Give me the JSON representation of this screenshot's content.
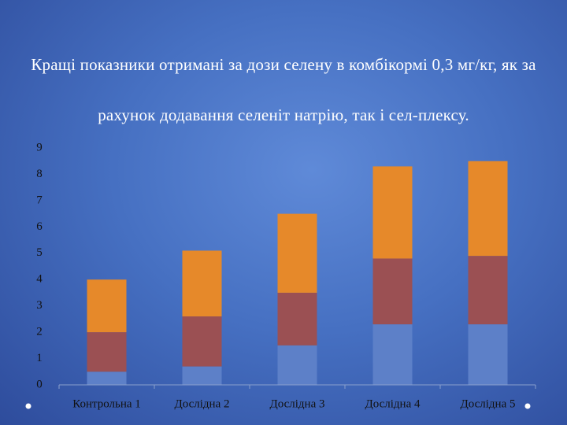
{
  "chart_data": {
    "type": "stacked_bar",
    "title": "Кращі показники отримані за дози селену в комбікормі 0,3 мг/кг, як за рахунок додавання селеніт натрію, так і сел-плексу.",
    "categories": [
      "Контрольна 1",
      "Дослідна 2",
      "Дослідна 3",
      "Дослідна 4",
      "Дослідна 5"
    ],
    "series": [
      {
        "color": "#5d80c8",
        "values": [
          0.5,
          0.7,
          1.5,
          2.3,
          2.3
        ]
      },
      {
        "color": "#9b5053",
        "values": [
          1.5,
          1.9,
          2.0,
          2.5,
          2.6
        ]
      },
      {
        "color": "#e6892a",
        "values": [
          2.0,
          2.5,
          3.0,
          3.5,
          3.6
        ]
      }
    ],
    "ylim": [
      0,
      9
    ],
    "yticks": [
      0,
      1,
      2,
      3,
      4,
      5,
      6,
      7,
      8,
      9
    ],
    "grid": false
  }
}
